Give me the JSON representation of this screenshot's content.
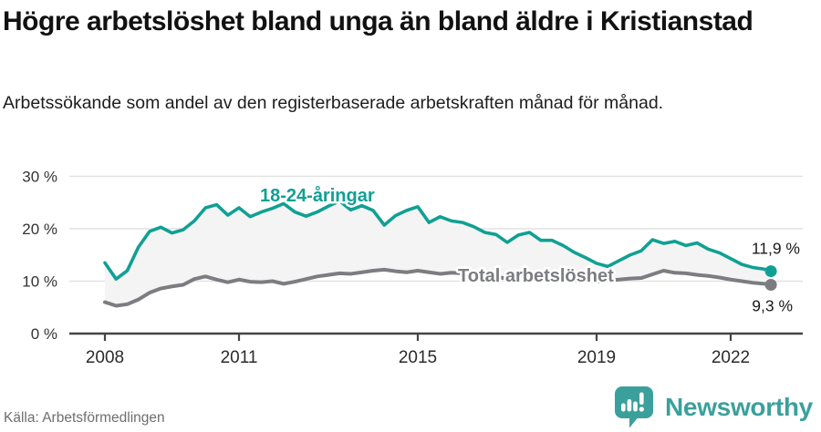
{
  "header": {
    "title": "Högre arbetslöshet bland unga än bland äldre i Kristianstad",
    "subtitle": "Arbetssökande som andel av den registerbaserade arbetskraften månad för månad."
  },
  "footer": {
    "source": "Källa: Arbetsförmedlingen",
    "brand": "Newsworthy"
  },
  "colors": {
    "young": "#10a093",
    "total": "#7c7d81",
    "band_fill": "#f4f4f4",
    "grid": "#e2e2e2",
    "axis": "#454545",
    "brand": "#3ba09b"
  },
  "chart_data": {
    "type": "line",
    "title": "Högre arbetslöshet bland unga än bland äldre i Kristianstad",
    "subtitle": "Arbetssökande som andel av den registerbaserade arbetskraften månad för månad.",
    "xlabel": "",
    "ylabel": "",
    "ylim": [
      0,
      31
    ],
    "xlim": [
      2007.2,
      2023.6
    ],
    "grid": true,
    "legend_position": "inline-labels",
    "yticks": [
      {
        "value": 0,
        "label": "0 %"
      },
      {
        "value": 10,
        "label": "10 %"
      },
      {
        "value": 20,
        "label": "20 %"
      },
      {
        "value": 30,
        "label": "30 %"
      }
    ],
    "xticks": [
      {
        "value": 2008,
        "label": "2008"
      },
      {
        "value": 2011,
        "label": "2011"
      },
      {
        "value": 2015,
        "label": "2015"
      },
      {
        "value": 2019,
        "label": "2019"
      },
      {
        "value": 2022,
        "label": "2022"
      }
    ],
    "x": [
      2008,
      2008.25,
      2008.5,
      2008.75,
      2009,
      2009.25,
      2009.5,
      2009.75,
      2010,
      2010.25,
      2010.5,
      2010.75,
      2011,
      2011.25,
      2011.5,
      2011.75,
      2012,
      2012.25,
      2012.5,
      2012.75,
      2013,
      2013.25,
      2013.5,
      2013.75,
      2014,
      2014.25,
      2014.5,
      2014.75,
      2015,
      2015.25,
      2015.5,
      2015.75,
      2016,
      2016.25,
      2016.5,
      2016.75,
      2017,
      2017.25,
      2017.5,
      2017.75,
      2018,
      2018.25,
      2018.5,
      2018.75,
      2019,
      2019.25,
      2019.5,
      2019.75,
      2020,
      2020.25,
      2020.5,
      2020.75,
      2021,
      2021.25,
      2021.5,
      2021.75,
      2022,
      2022.25,
      2022.5,
      2022.75,
      2022.9
    ],
    "series": [
      {
        "name": "18-24-åringar",
        "color_key": "young",
        "end_label": "11,9 %",
        "end_value": 11.9,
        "values": [
          13.5,
          10.4,
          12.0,
          16.5,
          19.5,
          20.3,
          19.2,
          19.8,
          21.5,
          24.0,
          24.6,
          22.6,
          24.0,
          22.3,
          23.2,
          23.9,
          24.8,
          23.2,
          22.4,
          23.2,
          24.3,
          25.3,
          23.6,
          24.4,
          23.5,
          20.7,
          22.5,
          23.5,
          24.2,
          21.2,
          22.3,
          21.5,
          21.2,
          20.4,
          19.3,
          18.9,
          17.4,
          18.8,
          19.3,
          17.8,
          17.8,
          16.8,
          15.5,
          14.5,
          13.4,
          12.8,
          13.9,
          15.0,
          15.8,
          17.9,
          17.2,
          17.6,
          16.8,
          17.3,
          16.1,
          15.4,
          14.3,
          13.2,
          12.6,
          12.3,
          11.9
        ]
      },
      {
        "name": "Total arbetslöshet",
        "color_key": "total",
        "end_label": "9,3 %",
        "end_value": 9.3,
        "values": [
          6.0,
          5.3,
          5.6,
          6.5,
          7.8,
          8.6,
          9.0,
          9.3,
          10.4,
          10.9,
          10.3,
          9.8,
          10.3,
          9.9,
          9.8,
          10.0,
          9.5,
          9.9,
          10.4,
          10.9,
          11.2,
          11.5,
          11.4,
          11.7,
          12.0,
          12.2,
          11.9,
          11.7,
          12.0,
          11.7,
          11.4,
          11.6,
          11.5,
          11.3,
          11.1,
          10.8,
          10.5,
          10.9,
          11.1,
          10.8,
          10.6,
          10.3,
          10.1,
          10.0,
          9.9,
          10.1,
          10.3,
          10.5,
          10.6,
          11.3,
          12.0,
          11.6,
          11.5,
          11.2,
          11.0,
          10.7,
          10.3,
          10.0,
          9.7,
          9.5,
          9.3
        ]
      }
    ]
  }
}
